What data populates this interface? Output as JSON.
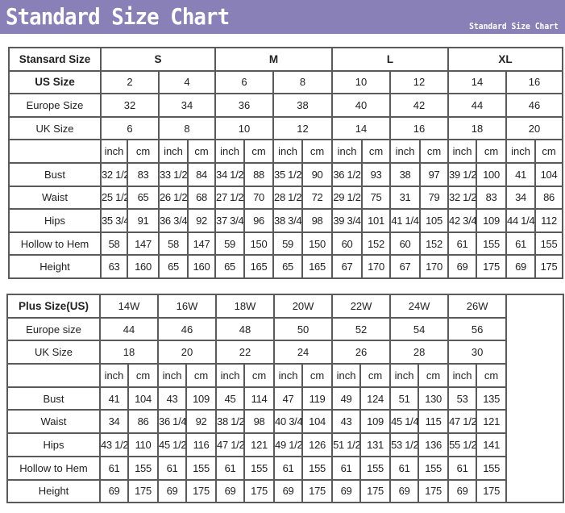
{
  "banner": {
    "title": "Standard Size Chart",
    "subtitle": "Standard Size Chart",
    "color": "#8a80b8"
  },
  "standard": {
    "header_label": "Stansard Size",
    "us_label": "US Size",
    "europe_label": "Europe Size",
    "uk_label": "UK Size",
    "groups": [
      "S",
      "M",
      "L",
      "XL"
    ],
    "us": [
      "2",
      "4",
      "6",
      "8",
      "10",
      "12",
      "14",
      "16"
    ],
    "europe": [
      "32",
      "34",
      "36",
      "38",
      "40",
      "42",
      "44",
      "46"
    ],
    "uk": [
      "6",
      "8",
      "10",
      "12",
      "14",
      "16",
      "18",
      "20"
    ],
    "units": [
      "inch",
      "cm"
    ],
    "rows": [
      {
        "label": "Bust",
        "values": [
          "32 1/2",
          "83",
          "33 1/2",
          "84",
          "34 1/2",
          "88",
          "35 1/2",
          "90",
          "36 1/2",
          "93",
          "38",
          "97",
          "39 1/2",
          "100",
          "41",
          "104"
        ]
      },
      {
        "label": "Waist",
        "values": [
          "25 1/2",
          "65",
          "26 1/2",
          "68",
          "27 1/2",
          "70",
          "28 1/2",
          "72",
          "29 1/2",
          "75",
          "31",
          "79",
          "32 1/2",
          "83",
          "34",
          "86"
        ]
      },
      {
        "label": "Hips",
        "values": [
          "35 3/4",
          "91",
          "36 3/4",
          "92",
          "37 3/4",
          "96",
          "38 3/4",
          "98",
          "39 3/4",
          "101",
          "41 1/4",
          "105",
          "42 3/4",
          "109",
          "44 1/4",
          "112"
        ]
      },
      {
        "label": "Hollow to Hem",
        "values": [
          "58",
          "147",
          "58",
          "147",
          "59",
          "150",
          "59",
          "150",
          "60",
          "152",
          "60",
          "152",
          "61",
          "155",
          "61",
          "155"
        ]
      },
      {
        "label": "Height",
        "values": [
          "63",
          "160",
          "65",
          "160",
          "65",
          "165",
          "65",
          "165",
          "67",
          "170",
          "67",
          "170",
          "69",
          "175",
          "69",
          "175"
        ]
      }
    ]
  },
  "plus": {
    "header_label": "Plus Size(US)",
    "europe_label": "Europe size",
    "uk_label": "UK Size",
    "us": [
      "14W",
      "16W",
      "18W",
      "20W",
      "22W",
      "24W",
      "26W"
    ],
    "europe": [
      "44",
      "46",
      "48",
      "50",
      "52",
      "54",
      "56"
    ],
    "uk": [
      "18",
      "20",
      "22",
      "24",
      "26",
      "28",
      "30"
    ],
    "units": [
      "inch",
      "cm"
    ],
    "rows": [
      {
        "label": "Bust",
        "values": [
          "41",
          "104",
          "43",
          "109",
          "45",
          "114",
          "47",
          "119",
          "49",
          "124",
          "51",
          "130",
          "53",
          "135"
        ]
      },
      {
        "label": "Waist",
        "values": [
          "34",
          "86",
          "36 1/4",
          "92",
          "38 1/2",
          "98",
          "40 3/4",
          "104",
          "43",
          "109",
          "45 1/4",
          "115",
          "47 1/2",
          "121"
        ]
      },
      {
        "label": "Hips",
        "values": [
          "43 1/2",
          "110",
          "45 1/2",
          "116",
          "47 1/2",
          "121",
          "49 1/2",
          "126",
          "51 1/2",
          "131",
          "53 1/2",
          "136",
          "55 1/2",
          "141"
        ]
      },
      {
        "label": "Hollow to Hem",
        "values": [
          "61",
          "155",
          "61",
          "155",
          "61",
          "155",
          "61",
          "155",
          "61",
          "155",
          "61",
          "155",
          "61",
          "155"
        ]
      },
      {
        "label": "Height",
        "values": [
          "69",
          "175",
          "69",
          "175",
          "69",
          "175",
          "69",
          "175",
          "69",
          "175",
          "69",
          "175",
          "69",
          "175"
        ]
      }
    ]
  }
}
